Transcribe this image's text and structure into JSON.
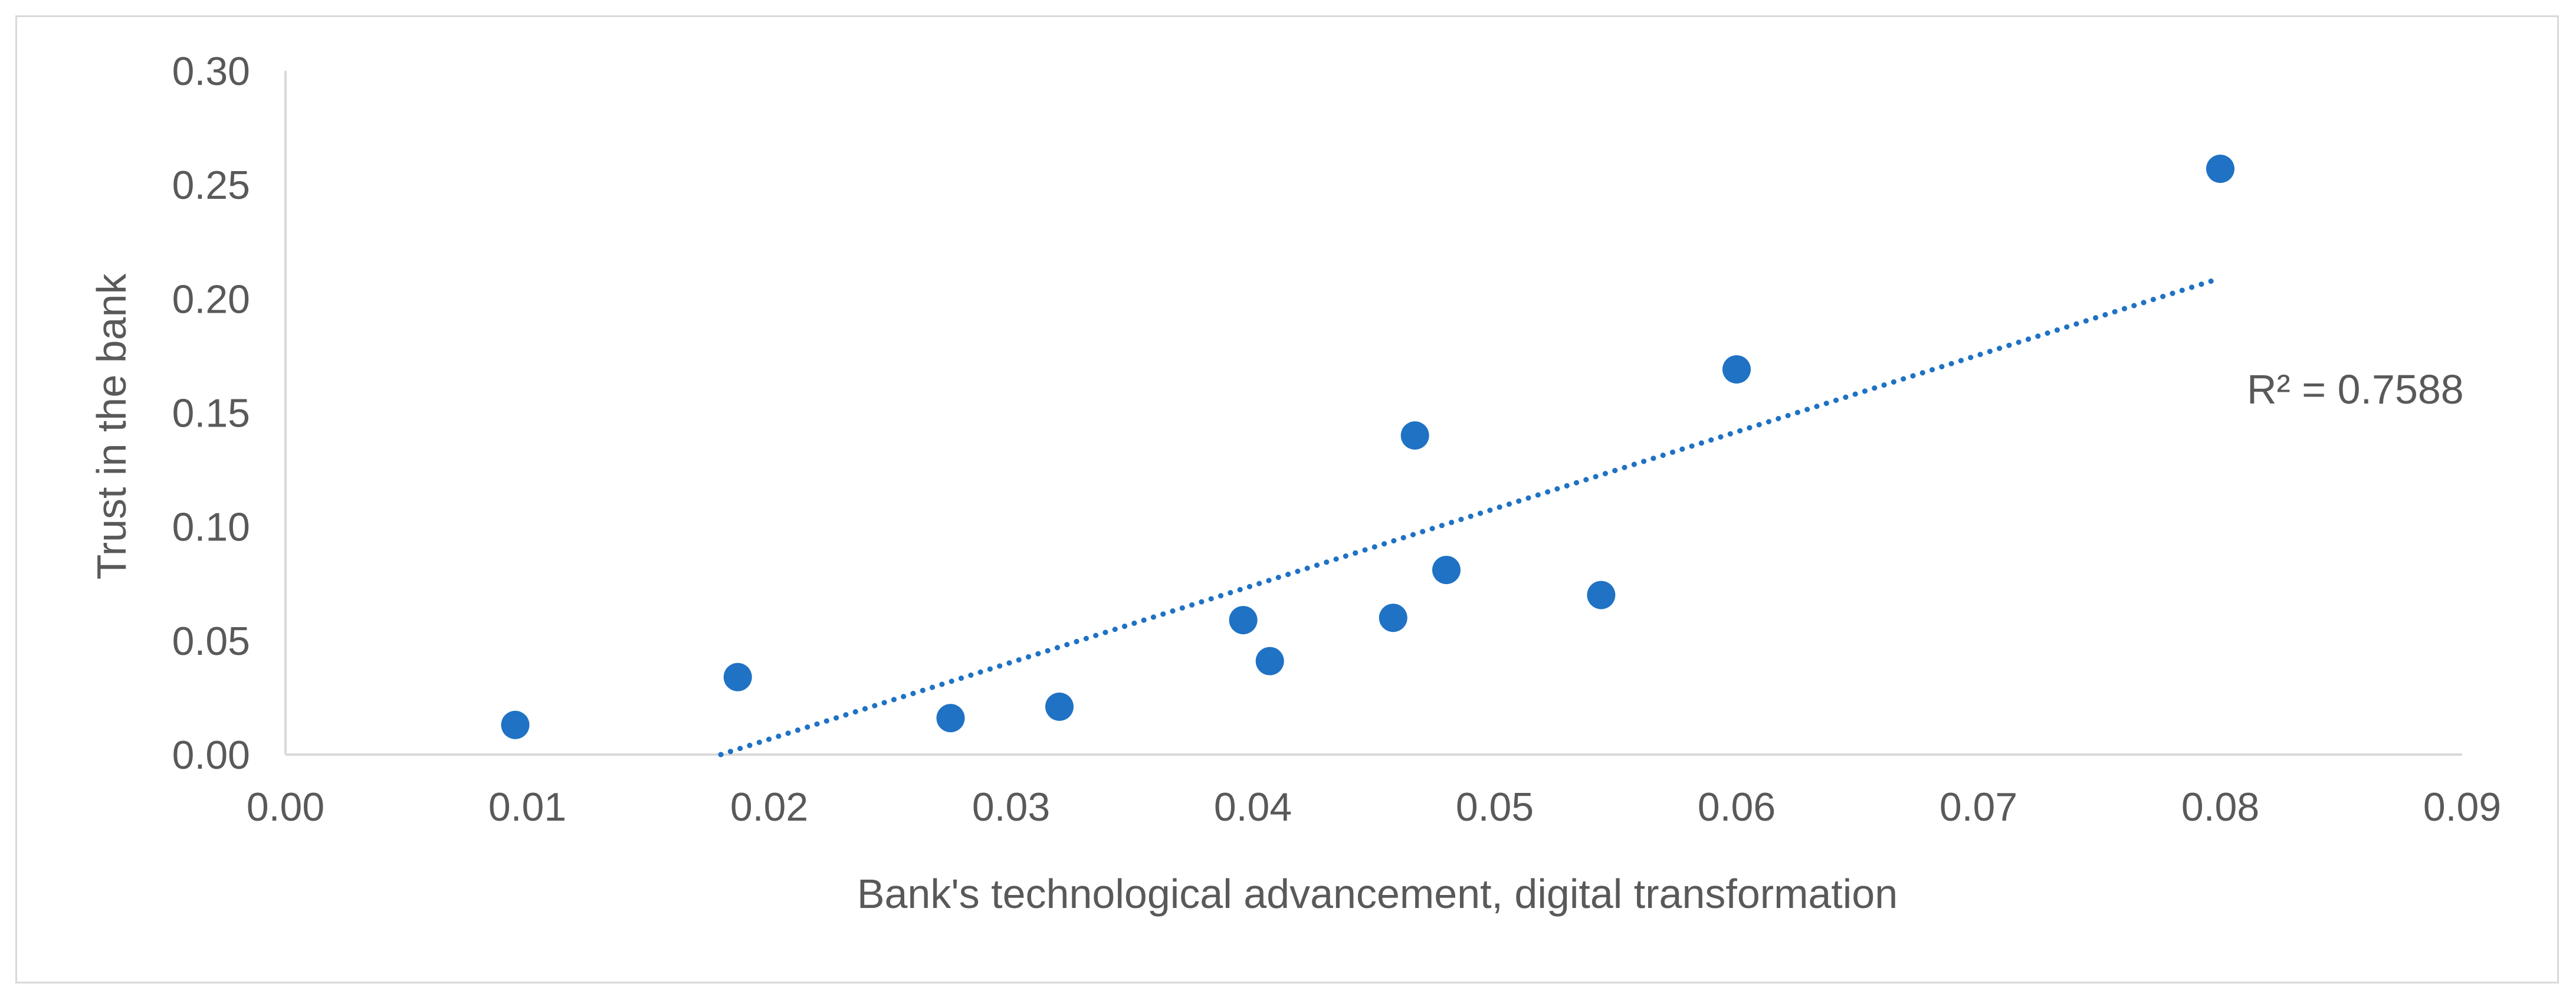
{
  "chart_data": {
    "type": "scatter",
    "title": "",
    "xlabel": "Bank's technological advancement, digital transformation",
    "ylabel": "Trust in the bank",
    "xlim": [
      0,
      0.09
    ],
    "ylim": [
      0,
      0.3
    ],
    "x_ticks": [
      "0.00",
      "0.01",
      "0.02",
      "0.03",
      "0.04",
      "0.05",
      "0.06",
      "0.07",
      "0.08",
      "0.09"
    ],
    "y_ticks": [
      "0.00",
      "0.05",
      "0.10",
      "0.15",
      "0.20",
      "0.25",
      "0.30"
    ],
    "grid": false,
    "legend": "none",
    "marker_color": "#1f72c4",
    "trendline_color": "#1f72c4",
    "points": [
      {
        "x": 0.0095,
        "y": 0.013
      },
      {
        "x": 0.0187,
        "y": 0.034
      },
      {
        "x": 0.0275,
        "y": 0.016
      },
      {
        "x": 0.032,
        "y": 0.021
      },
      {
        "x": 0.0396,
        "y": 0.059
      },
      {
        "x": 0.0407,
        "y": 0.041
      },
      {
        "x": 0.0458,
        "y": 0.06
      },
      {
        "x": 0.0467,
        "y": 0.14
      },
      {
        "x": 0.048,
        "y": 0.081
      },
      {
        "x": 0.0544,
        "y": 0.07
      },
      {
        "x": 0.06,
        "y": 0.169
      },
      {
        "x": 0.08,
        "y": 0.257
      }
    ],
    "trendline": {
      "type": "linear",
      "x_start": 0.018,
      "y_start": 0.0,
      "x_end": 0.08,
      "y_end": 0.209,
      "style": "dotted",
      "r2_label": "R² = 0.7588"
    }
  }
}
